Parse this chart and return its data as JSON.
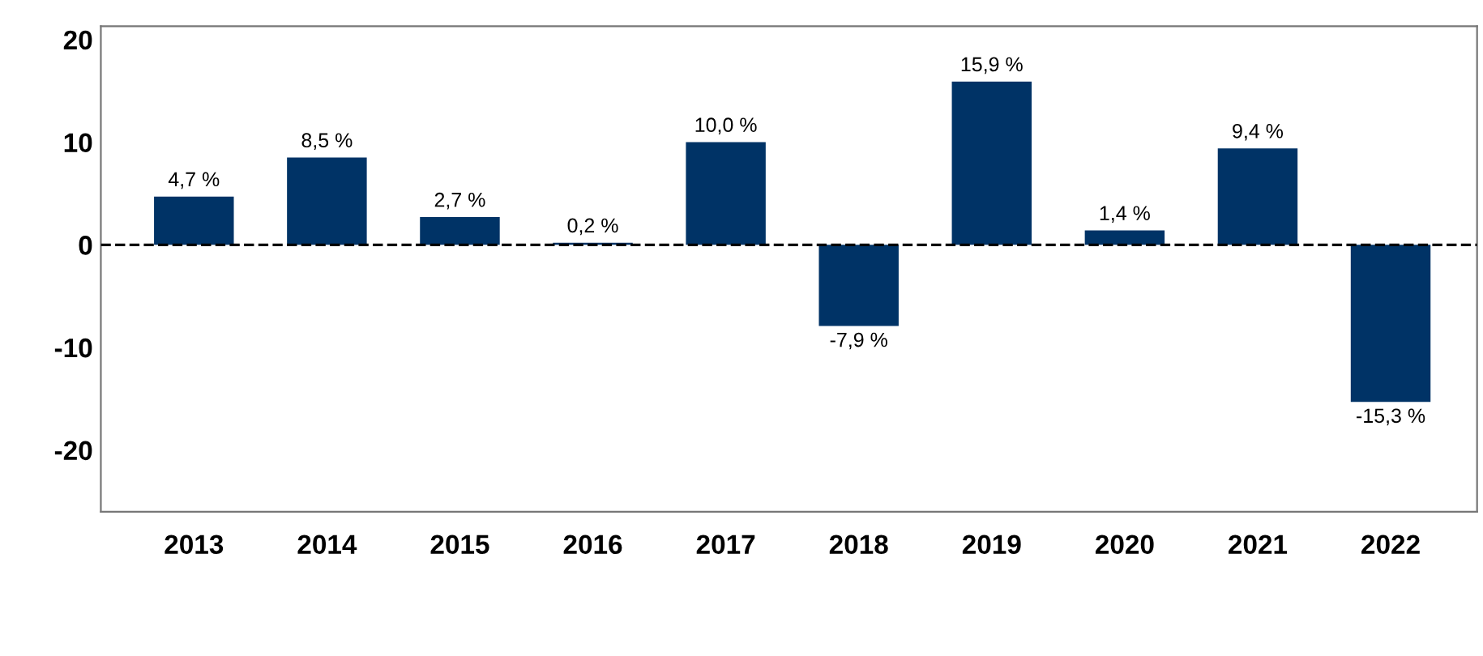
{
  "chart_data": {
    "type": "bar",
    "categories": [
      "2013",
      "2014",
      "2015",
      "2016",
      "2017",
      "2018",
      "2019",
      "2020",
      "2021",
      "2022"
    ],
    "series": [
      {
        "color": "#003366",
        "values": [
          4.7,
          8.5,
          2.7,
          0.2,
          10.0,
          -7.9,
          15.9,
          1.4,
          9.4,
          -15.3
        ],
        "value_labels": [
          "4,7 %",
          "8,5 %",
          "2,7 %",
          "0,2 %",
          "10,0 %",
          "-7,9 %",
          "15,9 %",
          "1,4 %",
          "9,4 %",
          "-15,3 %"
        ]
      }
    ],
    "ylim": [
      -26,
      21.3
    ],
    "yticks": [
      -20,
      -10,
      0,
      10,
      20
    ],
    "ref_lines": [
      {
        "axis": "y",
        "value": 0,
        "color": "#000000",
        "line_style": "dashed"
      }
    ],
    "grid": false,
    "legend": false
  }
}
